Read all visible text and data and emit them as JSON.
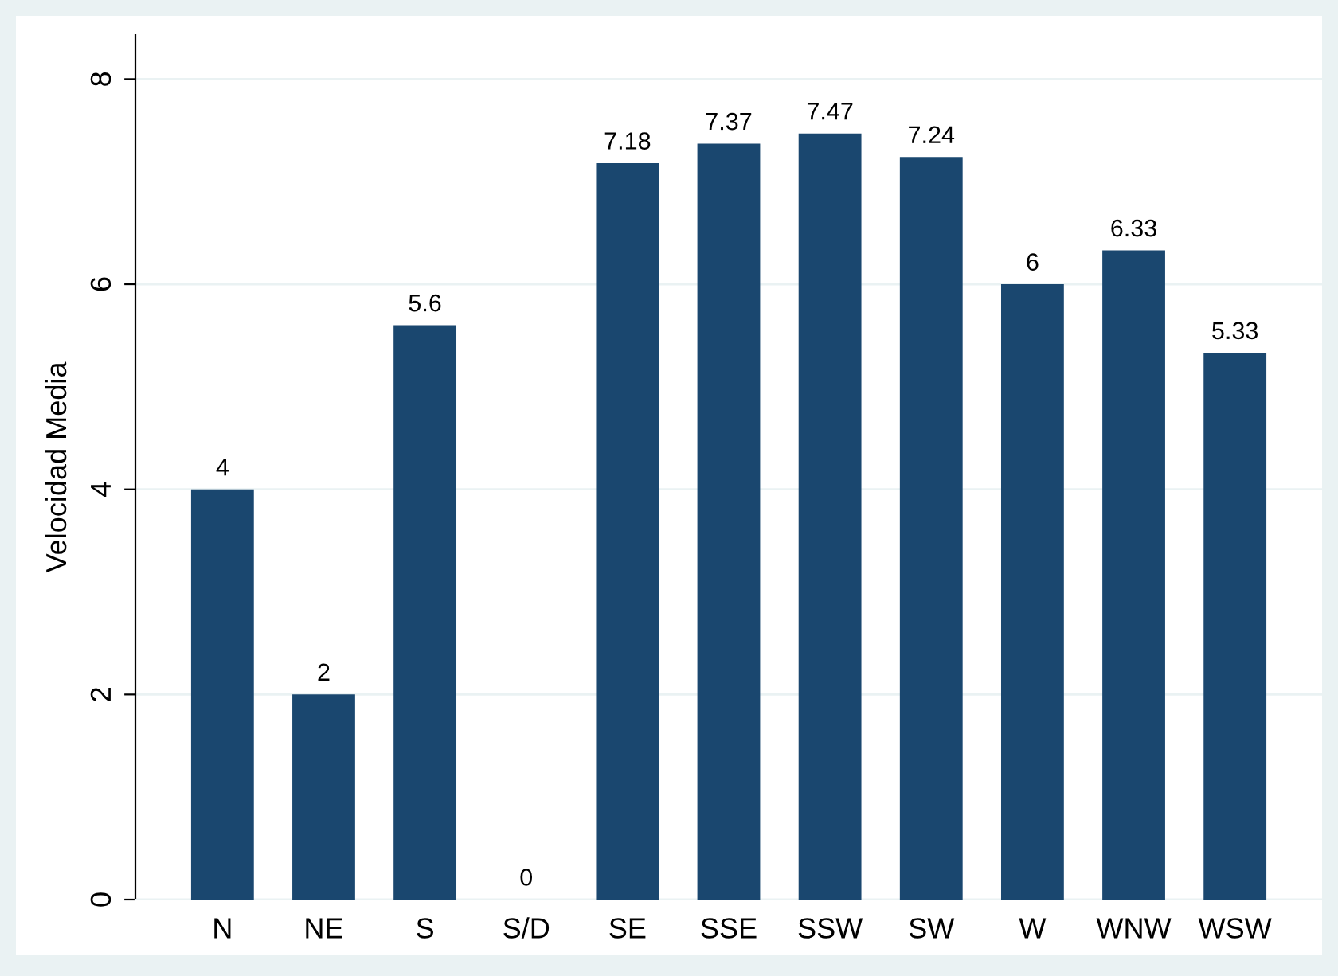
{
  "chart_data": {
    "type": "bar",
    "ylabel": "Velocidad Media",
    "categories": [
      "N",
      "NE",
      "S",
      "S/D",
      "SE",
      "SSE",
      "SSW",
      "SW",
      "W",
      "WNW",
      "WSW"
    ],
    "values": [
      4,
      2,
      5.6,
      0,
      7.18,
      7.37,
      7.47,
      7.24,
      6,
      6.33,
      5.33
    ],
    "color": "#1a476f",
    "ylim": [
      0,
      8.43
    ],
    "yticks": [
      0,
      2,
      4,
      6,
      8
    ],
    "grid": "y",
    "data_labels": true
  }
}
